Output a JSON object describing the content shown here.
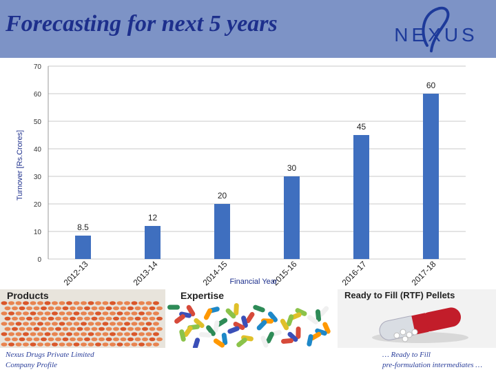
{
  "header": {
    "title": "Forecasting for next 5 years",
    "logo_text": "NEXUS",
    "background_color": "#7d93c6",
    "title_color": "#1d2f8c"
  },
  "chart_data": {
    "type": "bar",
    "categories": [
      "2012-13",
      "2013-14",
      "2014-15",
      "2015-16",
      "2016-17",
      "2017-18"
    ],
    "values": [
      8.5,
      12,
      20,
      30,
      45,
      60
    ],
    "value_labels": [
      "8.5",
      "12",
      "20",
      "30",
      "45",
      "60"
    ],
    "xlabel": "Financial Year",
    "ylabel": "Turnover [Rs.Crores]",
    "ylim": [
      0,
      70
    ],
    "yticks": [
      0,
      10,
      20,
      30,
      40,
      50,
      60,
      70
    ],
    "grid": true,
    "bar_color": "#3f6fbf"
  },
  "images": {
    "panel1_title": "Products",
    "panel2_title": "Expertise",
    "panel3_title": "Ready to Fill (RTF) Pellets"
  },
  "footer": {
    "left_line1": "Nexus Drugs Private Limited",
    "left_line2": "Company Profile",
    "right_line1": "… Ready to Fill",
    "right_line2": "pre-formulation intermediates …"
  }
}
